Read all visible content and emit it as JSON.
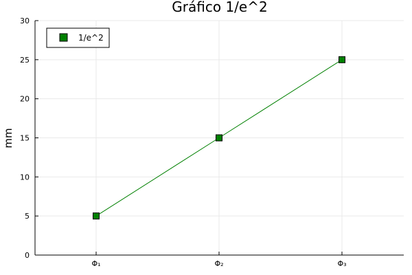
{
  "chart_data": {
    "type": "line",
    "title": "Gráfico 1/e^2",
    "xlabel": "",
    "ylabel": "mm",
    "categories": [
      "Φ₁",
      "Φ₂",
      "Φ₃"
    ],
    "ylim": [
      0,
      30
    ],
    "yticks": [
      0,
      5,
      10,
      15,
      20,
      25,
      30
    ],
    "grid": true,
    "legend_position": "top-left",
    "series": [
      {
        "name": "1/e^2",
        "values": [
          5,
          15,
          25
        ],
        "color": "#008000",
        "marker": "square"
      }
    ]
  }
}
